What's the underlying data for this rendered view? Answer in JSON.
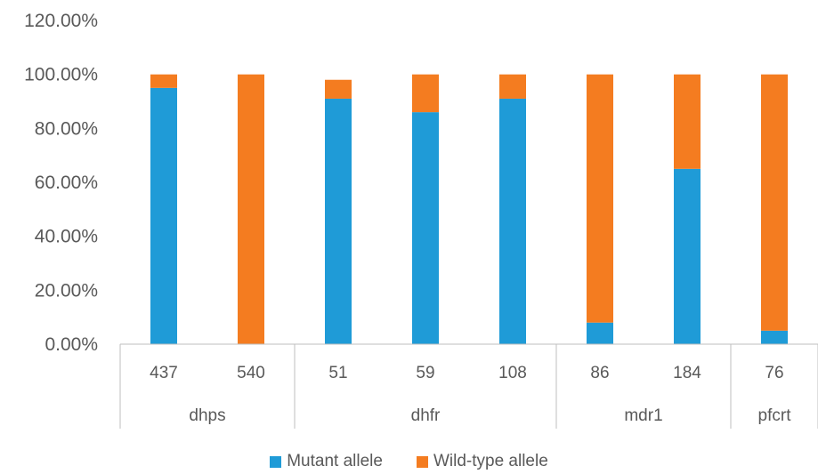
{
  "chart_data": {
    "type": "bar",
    "stacked": true,
    "categories": [
      "437",
      "540",
      "51",
      "59",
      "108",
      "86",
      "184",
      "76"
    ],
    "groups": [
      {
        "label": "dhps",
        "categories": [
          "437",
          "540"
        ]
      },
      {
        "label": "dhfr",
        "categories": [
          "51",
          "59",
          "108"
        ]
      },
      {
        "label": "mdr1",
        "categories": [
          "86",
          "184"
        ]
      },
      {
        "label": "pfcrt",
        "categories": [
          "76"
        ]
      }
    ],
    "series": [
      {
        "name": "Mutant allele",
        "color": "#1f9bd7",
        "values": [
          95,
          0,
          91,
          86,
          91,
          8,
          65,
          5
        ]
      },
      {
        "name": "Wild-type allele",
        "color": "#f47c20",
        "values": [
          5,
          100,
          7,
          14,
          9,
          92,
          35,
          95
        ]
      }
    ],
    "y_ticks": [
      "0.00%",
      "20.00%",
      "40.00%",
      "60.00%",
      "80.00%",
      "100.00%",
      "120.00%"
    ],
    "ylim": [
      0,
      120
    ],
    "grid": false,
    "legend_position": "bottom",
    "title": "",
    "xlabel": "",
    "ylabel": ""
  }
}
